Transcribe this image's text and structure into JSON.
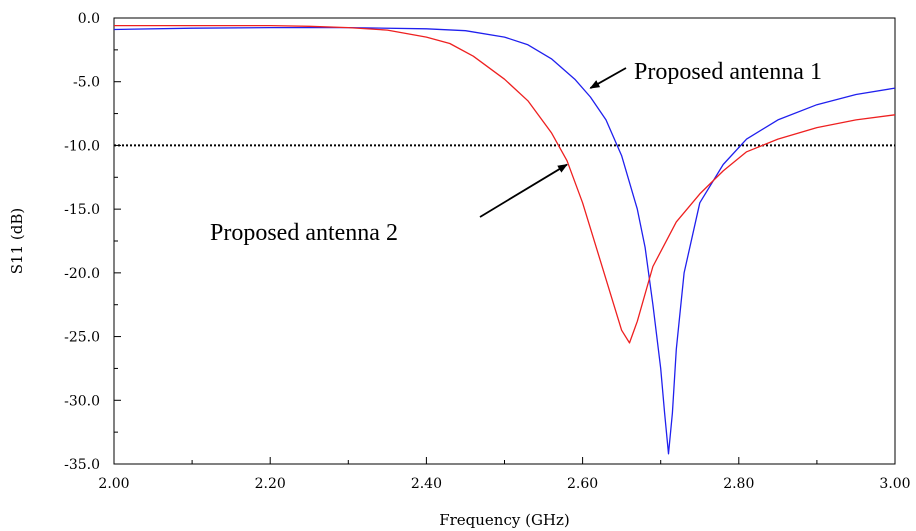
{
  "chart_data": {
    "type": "line",
    "xlabel": "Frequency (GHz)",
    "ylabel": "S11 (dB)",
    "xlim": [
      2.0,
      3.0
    ],
    "ylim": [
      -35.0,
      0.0
    ],
    "x_ticks": [
      2.0,
      2.2,
      2.4,
      2.6,
      2.8,
      3.0
    ],
    "x_tick_labels": [
      "2.00",
      "2.20",
      "2.40",
      "2.60",
      "2.80",
      "3.00"
    ],
    "y_ticks": [
      0.0,
      -5.0,
      -10.0,
      -15.0,
      -20.0,
      -25.0,
      -30.0,
      -35.0
    ],
    "y_tick_labels": [
      "0.0",
      "-5.0",
      "-10.0",
      "-15.0",
      "-20.0",
      "-25.0",
      "-30.0",
      "-35.0"
    ],
    "reference_line": {
      "y": -10.0,
      "style": "dotted",
      "color": "#000000"
    },
    "grid": false,
    "series": [
      {
        "name": "Proposed antenna 1",
        "color": "#2020ee",
        "points": [
          [
            2.0,
            -0.9
          ],
          [
            2.1,
            -0.8
          ],
          [
            2.2,
            -0.75
          ],
          [
            2.3,
            -0.75
          ],
          [
            2.4,
            -0.85
          ],
          [
            2.45,
            -1.0
          ],
          [
            2.5,
            -1.5
          ],
          [
            2.53,
            -2.1
          ],
          [
            2.56,
            -3.2
          ],
          [
            2.59,
            -4.8
          ],
          [
            2.61,
            -6.2
          ],
          [
            2.63,
            -8.0
          ],
          [
            2.65,
            -10.8
          ],
          [
            2.67,
            -15.0
          ],
          [
            2.68,
            -18.0
          ],
          [
            2.69,
            -22.5
          ],
          [
            2.7,
            -27.5
          ],
          [
            2.705,
            -31.0
          ],
          [
            2.71,
            -34.2
          ],
          [
            2.715,
            -31.0
          ],
          [
            2.72,
            -26.0
          ],
          [
            2.73,
            -20.0
          ],
          [
            2.75,
            -14.5
          ],
          [
            2.78,
            -11.5
          ],
          [
            2.81,
            -9.5
          ],
          [
            2.85,
            -8.0
          ],
          [
            2.9,
            -6.8
          ],
          [
            2.95,
            -6.0
          ],
          [
            3.0,
            -5.5
          ]
        ]
      },
      {
        "name": "Proposed antenna 2",
        "color": "#ee2020",
        "points": [
          [
            2.0,
            -0.6
          ],
          [
            2.1,
            -0.6
          ],
          [
            2.2,
            -0.6
          ],
          [
            2.25,
            -0.65
          ],
          [
            2.3,
            -0.75
          ],
          [
            2.35,
            -0.95
          ],
          [
            2.4,
            -1.5
          ],
          [
            2.43,
            -2.0
          ],
          [
            2.46,
            -3.0
          ],
          [
            2.5,
            -4.8
          ],
          [
            2.53,
            -6.5
          ],
          [
            2.56,
            -9.0
          ],
          [
            2.58,
            -11.2
          ],
          [
            2.6,
            -14.5
          ],
          [
            2.62,
            -18.5
          ],
          [
            2.64,
            -22.5
          ],
          [
            2.65,
            -24.5
          ],
          [
            2.66,
            -25.5
          ],
          [
            2.67,
            -23.8
          ],
          [
            2.69,
            -19.5
          ],
          [
            2.72,
            -16.0
          ],
          [
            2.75,
            -13.8
          ],
          [
            2.78,
            -12.0
          ],
          [
            2.81,
            -10.5
          ],
          [
            2.85,
            -9.5
          ],
          [
            2.9,
            -8.6
          ],
          [
            2.95,
            -8.0
          ],
          [
            3.0,
            -7.6
          ]
        ]
      }
    ],
    "annotations": [
      {
        "text": "Proposed antenna 1",
        "target": [
          2.61,
          -5.5
        ]
      },
      {
        "text": "Proposed antenna 2",
        "target": [
          2.58,
          -11.5
        ]
      }
    ]
  }
}
